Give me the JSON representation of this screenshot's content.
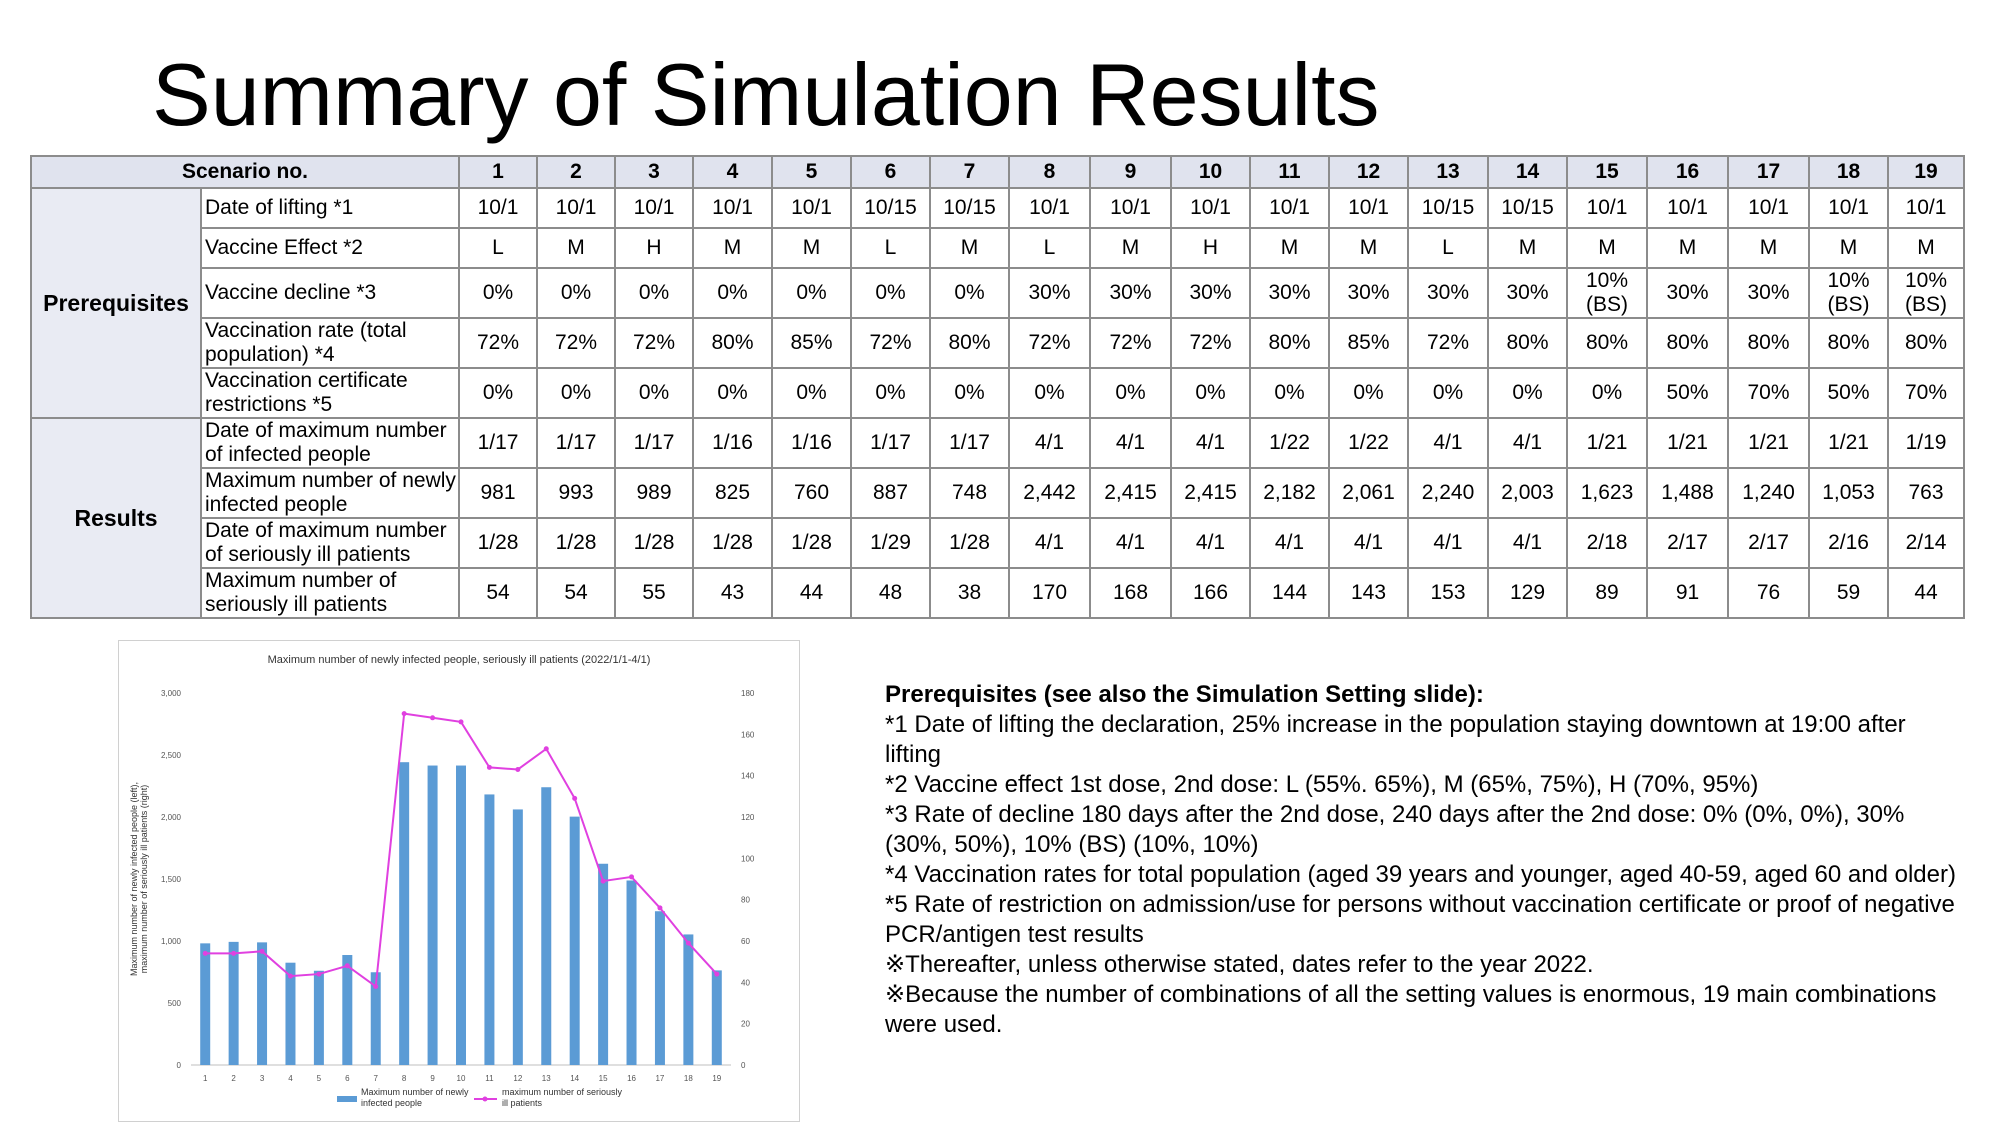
{
  "title": "Summary of Simulation Results",
  "table": {
    "header_label": "Scenario no.",
    "scenarios": [
      "1",
      "2",
      "3",
      "4",
      "5",
      "6",
      "7",
      "8",
      "9",
      "10",
      "11",
      "12",
      "13",
      "14",
      "15",
      "16",
      "17",
      "18",
      "19"
    ],
    "groups": [
      {
        "label": "Prerequisites",
        "rows": [
          {
            "label": "Date of lifting *1",
            "values": [
              "10/1",
              "10/1",
              "10/1",
              "10/1",
              "10/1",
              "10/15",
              "10/15",
              "10/1",
              "10/1",
              "10/1",
              "10/1",
              "10/1",
              "10/15",
              "10/15",
              "10/1",
              "10/1",
              "10/1",
              "10/1",
              "10/1"
            ]
          },
          {
            "label": "Vaccine Effect *2",
            "values": [
              "L",
              "M",
              "H",
              "M",
              "M",
              "L",
              "M",
              "L",
              "M",
              "H",
              "M",
              "M",
              "L",
              "M",
              "M",
              "M",
              "M",
              "M",
              "M"
            ]
          },
          {
            "label": "Vaccine decline *3",
            "values": [
              "0%",
              "0%",
              "0%",
              "0%",
              "0%",
              "0%",
              "0%",
              "30%",
              "30%",
              "30%",
              "30%",
              "30%",
              "30%",
              "30%",
              "10% (BS)",
              "30%",
              "30%",
              "10% (BS)",
              "10% (BS)"
            ]
          },
          {
            "label": "Vaccination rate (total population) *4",
            "values": [
              "72%",
              "72%",
              "72%",
              "80%",
              "85%",
              "72%",
              "80%",
              "72%",
              "72%",
              "72%",
              "80%",
              "85%",
              "72%",
              "80%",
              "80%",
              "80%",
              "80%",
              "80%",
              "80%"
            ]
          },
          {
            "label": "Vaccination certificate restrictions *5",
            "values": [
              "0%",
              "0%",
              "0%",
              "0%",
              "0%",
              "0%",
              "0%",
              "0%",
              "0%",
              "0%",
              "0%",
              "0%",
              "0%",
              "0%",
              "0%",
              "50%",
              "70%",
              "50%",
              "70%"
            ]
          }
        ]
      },
      {
        "label": "Results",
        "rows": [
          {
            "label": "Date of maximum number of infected people",
            "values": [
              "1/17",
              "1/17",
              "1/17",
              "1/16",
              "1/16",
              "1/17",
              "1/17",
              "4/1",
              "4/1",
              "4/1",
              "1/22",
              "1/22",
              "4/1",
              "4/1",
              "1/21",
              "1/21",
              "1/21",
              "1/21",
              "1/19"
            ]
          },
          {
            "label": "Maximum number of newly infected people",
            "values": [
              "981",
              "993",
              "989",
              "825",
              "760",
              "887",
              "748",
              "2,442",
              "2,415",
              "2,415",
              "2,182",
              "2,061",
              "2,240",
              "2,003",
              "1,623",
              "1,488",
              "1,240",
              "1,053",
              "763"
            ]
          },
          {
            "label": "Date of maximum number of seriously ill patients",
            "values": [
              "1/28",
              "1/28",
              "1/28",
              "1/28",
              "1/28",
              "1/29",
              "1/28",
              "4/1",
              "4/1",
              "4/1",
              "4/1",
              "4/1",
              "4/1",
              "4/1",
              "2/18",
              "2/17",
              "2/17",
              "2/16",
              "2/14"
            ]
          },
          {
            "label": "Maximum number of seriously ill patients",
            "values": [
              "54",
              "54",
              "55",
              "43",
              "44",
              "48",
              "38",
              "170",
              "168",
              "166",
              "144",
              "143",
              "153",
              "129",
              "89",
              "91",
              "76",
              "59",
              "44"
            ]
          }
        ]
      }
    ]
  },
  "chart_data": {
    "type": "bar",
    "title": "Maximum number of newly infected people, seriously ill patients (2022/1/1-4/1)",
    "ylabel": "Maximum number of newly infected people (left), maximum number of seriously ill patients (right)",
    "categories": [
      "1",
      "2",
      "3",
      "4",
      "5",
      "6",
      "7",
      "8",
      "9",
      "10",
      "11",
      "12",
      "13",
      "14",
      "15",
      "16",
      "17",
      "18",
      "19"
    ],
    "left_ylim": [
      0,
      3000
    ],
    "left_ticks": [
      "0",
      "500",
      "1,000",
      "1,500",
      "2,000",
      "2,500",
      "3,000"
    ],
    "right_ylim": [
      0,
      180
    ],
    "right_ticks": [
      "0",
      "20",
      "40",
      "60",
      "80",
      "100",
      "120",
      "140",
      "160",
      "180"
    ],
    "series": [
      {
        "name": "Maximum number of newly infected people",
        "type": "bar",
        "axis": "left",
        "color": "#5b9bd5",
        "values": [
          981,
          993,
          989,
          825,
          760,
          887,
          748,
          2442,
          2415,
          2415,
          2182,
          2061,
          2240,
          2003,
          1623,
          1488,
          1240,
          1053,
          763
        ]
      },
      {
        "name": "maximum number of seriously ill patients",
        "type": "line",
        "axis": "right",
        "color": "#e040e0",
        "values": [
          54,
          54,
          55,
          43,
          44,
          48,
          38,
          170,
          168,
          166,
          144,
          143,
          153,
          129,
          89,
          91,
          76,
          59,
          44
        ]
      }
    ],
    "legend_position": "bottom",
    "grid": false
  },
  "notes": {
    "heading": "Prerequisites (see also the Simulation Setting slide):",
    "lines": [
      "*1 Date of lifting the declaration, 25% increase in the population staying downtown at 19:00 after lifting",
      "*2 Vaccine effect 1st dose, 2nd dose: L (55%. 65%), M (65%, 75%), H (70%, 95%)",
      "*3 Rate of decline 180 days after the 2nd dose, 240 days after the 2nd dose: 0% (0%, 0%), 30% (30%, 50%), 10% (BS) (10%, 10%)",
      "*4 Vaccination rates for total population (aged 39 years and younger, aged 40-59, aged 60 and older)",
      "*5 Rate of restriction on admission/use for persons without vaccination certificate or proof of negative PCR/antigen test results",
      "※Thereafter, unless otherwise stated, dates refer to the year 2022.",
      "※Because the number of combinations of all the setting values is enormous, 19 main combinations were used."
    ]
  }
}
